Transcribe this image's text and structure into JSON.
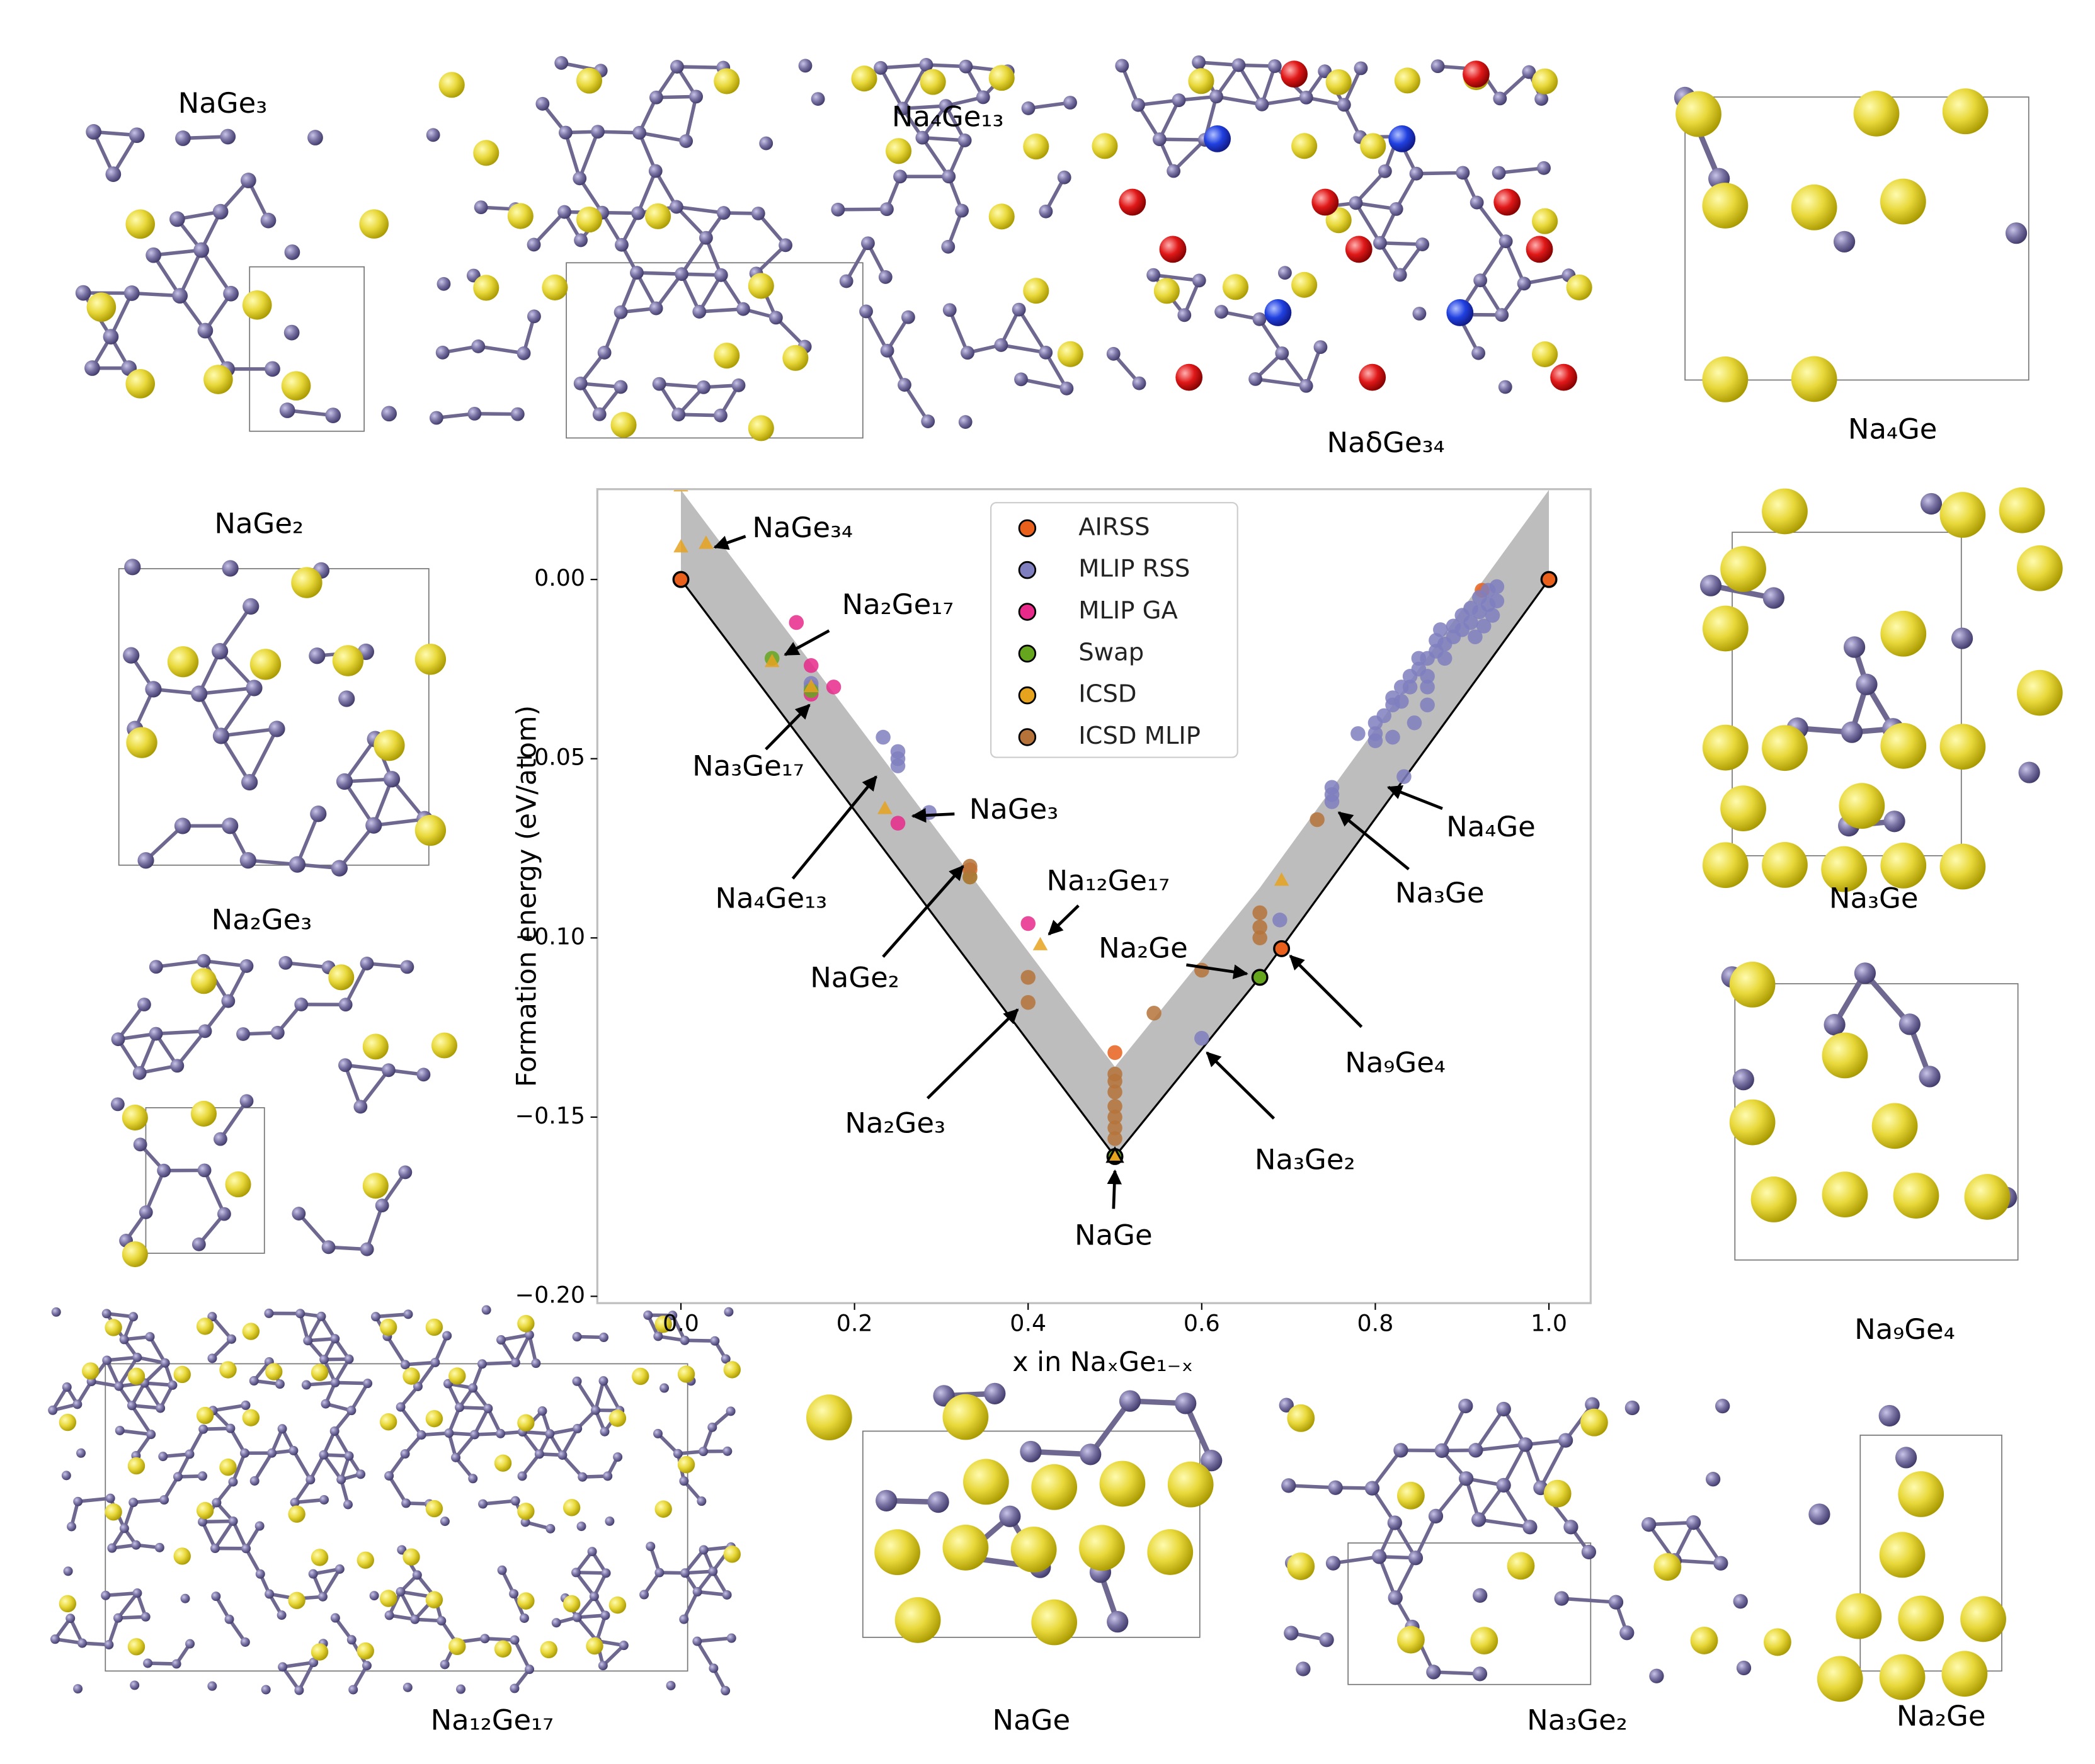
{
  "chart_data": {
    "type": "scatter",
    "xlabel": "x in NaₓGe₁₋ₓ",
    "ylabel": "Formation energy (eV/atom)",
    "xlim": [
      -0.0963,
      1.0481
    ],
    "ylim": [
      -0.2019,
      0.0252
    ],
    "xticks": [
      {
        "value": 0,
        "label": "0.0"
      },
      {
        "value": 0.2,
        "label": "0.2"
      },
      {
        "value": 0.4,
        "label": "0.4"
      },
      {
        "value": 0.6,
        "label": "0.6"
      },
      {
        "value": 0.8,
        "label": "0.8"
      },
      {
        "value": 1,
        "label": "1.0"
      }
    ],
    "yticks": [
      {
        "value": -0.2,
        "label": "−0.20"
      },
      {
        "value": -0.15,
        "label": "−0.15"
      },
      {
        "value": -0.1,
        "label": "−0.10"
      },
      {
        "value": -0.05,
        "label": "−0.05"
      },
      {
        "value": 0,
        "label": "0.00"
      }
    ],
    "legend": "upper center",
    "hull": {
      "color": "#000000",
      "x": [
        0,
        0.5,
        0.667,
        1
      ],
      "y": [
        0,
        -0.161,
        -0.111,
        0
      ]
    },
    "band_width": 0.025,
    "band_color": "#bdbdbd",
    "series": [
      {
        "name": "AIRSS",
        "color": "#e8601c",
        "marker": "circle",
        "x": [
          0,
          1,
          0.692,
          0.5,
          0.333,
          0.923
        ],
        "values": [
          0,
          0,
          -0.103,
          -0.132,
          -0.081,
          -0.003
        ],
        "edge": [
          true,
          true,
          true,
          false,
          false,
          false
        ]
      },
      {
        "name": "MLIP RSS",
        "color": "#7f7fbf",
        "marker": "circle",
        "x": [
          0.6,
          0.69,
          0.25,
          0.25,
          0.25,
          0.233,
          0.286,
          0.15,
          0.15,
          0.75,
          0.75,
          0.75,
          0.8,
          0.833,
          0.78,
          0.8,
          0.8,
          0.81,
          0.82,
          0.82,
          0.83,
          0.83,
          0.84,
          0.84,
          0.85,
          0.85,
          0.86,
          0.86,
          0.86,
          0.87,
          0.87,
          0.875,
          0.88,
          0.88,
          0.89,
          0.89,
          0.9,
          0.9,
          0.91,
          0.91,
          0.92,
          0.92,
          0.93,
          0.93,
          0.94,
          0.94,
          0.935,
          0.925,
          0.915,
          0.82,
          0.845,
          0.86
        ],
        "values": [
          -0.128,
          -0.095,
          -0.048,
          -0.05,
          -0.052,
          -0.044,
          -0.065,
          -0.03,
          -0.029,
          -0.062,
          -0.06,
          -0.058,
          -0.045,
          -0.055,
          -0.043,
          -0.04,
          -0.043,
          -0.038,
          -0.033,
          -0.035,
          -0.03,
          -0.034,
          -0.027,
          -0.03,
          -0.025,
          -0.022,
          -0.022,
          -0.027,
          -0.03,
          -0.017,
          -0.02,
          -0.014,
          -0.018,
          -0.022,
          -0.013,
          -0.016,
          -0.01,
          -0.014,
          -0.008,
          -0.012,
          -0.005,
          -0.009,
          -0.003,
          -0.007,
          -0.002,
          -0.006,
          -0.01,
          -0.013,
          -0.016,
          -0.044,
          -0.04,
          -0.035
        ]
      },
      {
        "name": "MLIP GA",
        "color": "#e7298a",
        "marker": "circle",
        "x": [
          0.133,
          0.15,
          0.176,
          0.25,
          0.4,
          0.15
        ],
        "values": [
          -0.012,
          -0.024,
          -0.03,
          -0.068,
          -0.096,
          -0.032
        ]
      },
      {
        "name": "Swap",
        "color": "#66a61e",
        "marker": "circle",
        "x": [
          0.105,
          0.15,
          0.333,
          0.5,
          0.667
        ],
        "values": [
          -0.022,
          -0.031,
          -0.083,
          -0.161,
          -0.111
        ],
        "edge": [
          false,
          false,
          false,
          true,
          true
        ]
      },
      {
        "name": "ICSD",
        "color": "#e6a31e",
        "marker": "triangle",
        "x": [
          0,
          0.029,
          0,
          0.105,
          0.15,
          0.235,
          0.414,
          0.5,
          0.692
        ],
        "values": [
          0.009,
          0.01,
          0.026,
          -0.023,
          -0.03,
          -0.064,
          -0.102,
          -0.161,
          -0.084
        ],
        "edge": [
          false,
          false,
          false,
          false,
          false,
          false,
          false,
          true,
          false
        ]
      },
      {
        "name": "ICSD MLIP",
        "color": "#b5733a",
        "marker": "circle",
        "x": [
          0.333,
          0.333,
          0.4,
          0.4,
          0.5,
          0.5,
          0.5,
          0.5,
          0.5,
          0.5,
          0.5,
          0.545,
          0.6,
          0.667,
          0.667,
          0.667,
          0.733
        ],
        "values": [
          -0.08,
          -0.083,
          -0.111,
          -0.118,
          -0.138,
          -0.14,
          -0.143,
          -0.147,
          -0.15,
          -0.153,
          -0.156,
          -0.121,
          -0.109,
          -0.093,
          -0.097,
          -0.1,
          -0.067
        ]
      }
    ],
    "annotations": [
      {
        "text": "NaGe₃₄",
        "x": 0.039,
        "y": 0.009
      },
      {
        "text": "Na₂Ge₁₇",
        "x": 0.12,
        "y": -0.021
      },
      {
        "text": "Na₃Ge₁₇",
        "x": 0.148,
        "y": -0.035
      },
      {
        "text": "NaGe₃",
        "x": 0.267,
        "y": -0.066
      },
      {
        "text": "Na₄Ge₁₃",
        "x": 0.225,
        "y": -0.055
      },
      {
        "text": "Na₁₂Ge₁₇",
        "x": 0.424,
        "y": -0.099
      },
      {
        "text": "NaGe₂",
        "x": 0.325,
        "y": -0.08
      },
      {
        "text": "Na₂Ge₃",
        "x": 0.388,
        "y": -0.12
      },
      {
        "text": "Na₂Ge",
        "x": 0.652,
        "y": -0.11
      },
      {
        "text": "Na₉Ge₄",
        "x": 0.702,
        "y": -0.105
      },
      {
        "text": "Na₃Ge₂",
        "x": 0.606,
        "y": -0.132
      },
      {
        "text": "Na₄Ge",
        "x": 0.815,
        "y": -0.058
      },
      {
        "text": "Na₃Ge",
        "x": 0.758,
        "y": -0.065
      },
      {
        "text": "NaGe",
        "x": 0.5,
        "y": -0.165
      }
    ]
  },
  "structures": [
    {
      "label": "NaGe₃"
    },
    {
      "label": "Na₄Ge₁₃"
    },
    {
      "label": "NaδGe₃₄"
    },
    {
      "label": "Na₄Ge"
    },
    {
      "label": "NaGe₂"
    },
    {
      "label": "Na₃Ge"
    },
    {
      "label": "Na₂Ge₃"
    },
    {
      "label": "Na₉Ge₄"
    },
    {
      "label": "Na₁₂Ge₁₇"
    },
    {
      "label": "NaGe"
    },
    {
      "label": "Na₃Ge₂"
    },
    {
      "label": "Na₂Ge"
    }
  ]
}
